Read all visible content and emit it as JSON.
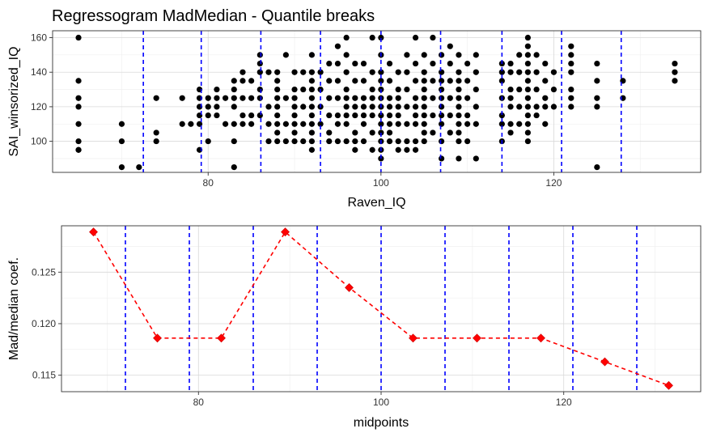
{
  "title": "Regressogram MadMedian - Quantile breaks",
  "colors": {
    "points": "#000000",
    "breaks": "#0000ff",
    "trend": "#ff0000"
  },
  "chart_data": [
    {
      "type": "scatter",
      "xlabel": "Raven_IQ",
      "ylabel": "SAI_winsorized_IQ",
      "xlim": [
        62,
        137
      ],
      "ylim": [
        82,
        164
      ],
      "xticks": [
        80,
        100,
        120
      ],
      "yticks": [
        100,
        120,
        140,
        160
      ],
      "breaks": [
        72.5,
        79.2,
        86.1,
        93.0,
        100.0,
        106.9,
        114.0,
        120.9,
        127.8
      ],
      "points": [
        [
          65,
          160
        ],
        [
          65,
          135
        ],
        [
          65,
          125
        ],
        [
          65,
          120
        ],
        [
          65,
          110
        ],
        [
          65,
          100
        ],
        [
          65,
          95
        ],
        [
          65,
          95
        ],
        [
          70,
          110
        ],
        [
          70,
          100
        ],
        [
          70,
          85
        ],
        [
          72,
          85
        ],
        [
          74,
          125
        ],
        [
          74,
          105
        ],
        [
          74,
          100
        ],
        [
          77,
          125
        ],
        [
          77,
          110
        ],
        [
          78,
          110
        ],
        [
          79,
          130
        ],
        [
          79,
          125
        ],
        [
          79,
          120
        ],
        [
          79,
          115
        ],
        [
          79,
          110
        ],
        [
          79,
          95
        ],
        [
          80,
          125
        ],
        [
          80,
          120
        ],
        [
          80,
          115
        ],
        [
          80,
          100
        ],
        [
          81,
          130
        ],
        [
          81,
          125
        ],
        [
          81,
          120
        ],
        [
          81,
          115
        ],
        [
          82,
          125
        ],
        [
          82,
          110
        ],
        [
          83,
          135
        ],
        [
          83,
          130
        ],
        [
          83,
          125
        ],
        [
          83,
          120
        ],
        [
          83,
          110
        ],
        [
          83,
          100
        ],
        [
          83,
          85
        ],
        [
          84,
          140
        ],
        [
          84,
          135
        ],
        [
          84,
          125
        ],
        [
          84,
          115
        ],
        [
          84,
          110
        ],
        [
          85,
          135
        ],
        [
          85,
          125
        ],
        [
          85,
          115
        ],
        [
          85,
          110
        ],
        [
          86,
          150
        ],
        [
          86,
          145
        ],
        [
          86,
          140
        ],
        [
          86,
          130
        ],
        [
          86,
          125
        ],
        [
          86,
          115
        ],
        [
          87,
          140
        ],
        [
          87,
          120
        ],
        [
          87,
          110
        ],
        [
          87,
          100
        ],
        [
          88,
          140
        ],
        [
          88,
          135
        ],
        [
          88,
          130
        ],
        [
          88,
          125
        ],
        [
          88,
          120
        ],
        [
          88,
          115
        ],
        [
          88,
          110
        ],
        [
          88,
          105
        ],
        [
          88,
          100
        ],
        [
          89,
          150
        ],
        [
          89,
          125
        ],
        [
          89,
          110
        ],
        [
          89,
          100
        ],
        [
          90,
          140
        ],
        [
          90,
          130
        ],
        [
          90,
          125
        ],
        [
          90,
          120
        ],
        [
          90,
          115
        ],
        [
          90,
          110
        ],
        [
          90,
          105
        ],
        [
          90,
          100
        ],
        [
          91,
          140
        ],
        [
          91,
          130
        ],
        [
          91,
          120
        ],
        [
          91,
          110
        ],
        [
          91,
          100
        ],
        [
          92,
          150
        ],
        [
          92,
          140
        ],
        [
          92,
          135
        ],
        [
          92,
          130
        ],
        [
          92,
          125
        ],
        [
          92,
          120
        ],
        [
          92,
          115
        ],
        [
          92,
          110
        ],
        [
          92,
          105
        ],
        [
          92,
          100
        ],
        [
          92,
          95
        ],
        [
          93,
          140
        ],
        [
          93,
          130
        ],
        [
          93,
          120
        ],
        [
          93,
          110
        ],
        [
          94,
          145
        ],
        [
          94,
          135
        ],
        [
          94,
          125
        ],
        [
          94,
          115
        ],
        [
          94,
          105
        ],
        [
          94,
          100
        ],
        [
          95,
          155
        ],
        [
          95,
          145
        ],
        [
          95,
          135
        ],
        [
          95,
          125
        ],
        [
          95,
          115
        ],
        [
          95,
          110
        ],
        [
          95,
          100
        ],
        [
          96,
          160
        ],
        [
          96,
          150
        ],
        [
          96,
          140
        ],
        [
          96,
          130
        ],
        [
          96,
          125
        ],
        [
          96,
          120
        ],
        [
          96,
          115
        ],
        [
          96,
          110
        ],
        [
          96,
          100
        ],
        [
          97,
          145
        ],
        [
          97,
          135
        ],
        [
          97,
          125
        ],
        [
          97,
          120
        ],
        [
          97,
          115
        ],
        [
          97,
          105
        ],
        [
          97,
          100
        ],
        [
          97,
          95
        ],
        [
          98,
          145
        ],
        [
          98,
          135
        ],
        [
          98,
          125
        ],
        [
          98,
          120
        ],
        [
          98,
          115
        ],
        [
          98,
          110
        ],
        [
          98,
          100
        ],
        [
          99,
          160
        ],
        [
          99,
          140
        ],
        [
          99,
          130
        ],
        [
          99,
          125
        ],
        [
          99,
          120
        ],
        [
          99,
          115
        ],
        [
          99,
          105
        ],
        [
          99,
          95
        ],
        [
          100,
          160
        ],
        [
          100,
          150
        ],
        [
          100,
          140
        ],
        [
          100,
          135
        ],
        [
          100,
          130
        ],
        [
          100,
          125
        ],
        [
          100,
          120
        ],
        [
          100,
          115
        ],
        [
          100,
          110
        ],
        [
          100,
          105
        ],
        [
          100,
          100
        ],
        [
          100,
          95
        ],
        [
          100,
          90
        ],
        [
          101,
          145
        ],
        [
          101,
          135
        ],
        [
          101,
          125
        ],
        [
          101,
          120
        ],
        [
          101,
          115
        ],
        [
          101,
          110
        ],
        [
          101,
          105
        ],
        [
          101,
          100
        ],
        [
          102,
          140
        ],
        [
          102,
          130
        ],
        [
          102,
          125
        ],
        [
          102,
          120
        ],
        [
          102,
          115
        ],
        [
          102,
          110
        ],
        [
          102,
          100
        ],
        [
          102,
          95
        ],
        [
          103,
          150
        ],
        [
          103,
          140
        ],
        [
          103,
          130
        ],
        [
          103,
          120
        ],
        [
          103,
          110
        ],
        [
          103,
          100
        ],
        [
          103,
          95
        ],
        [
          104,
          160
        ],
        [
          104,
          145
        ],
        [
          104,
          135
        ],
        [
          104,
          125
        ],
        [
          104,
          120
        ],
        [
          104,
          115
        ],
        [
          104,
          110
        ],
        [
          104,
          100
        ],
        [
          104,
          95
        ],
        [
          105,
          150
        ],
        [
          105,
          140
        ],
        [
          105,
          135
        ],
        [
          105,
          130
        ],
        [
          105,
          125
        ],
        [
          105,
          120
        ],
        [
          105,
          115
        ],
        [
          105,
          110
        ],
        [
          105,
          105
        ],
        [
          105,
          100
        ],
        [
          106,
          160
        ],
        [
          106,
          145
        ],
        [
          106,
          135
        ],
        [
          106,
          125
        ],
        [
          106,
          115
        ],
        [
          106,
          105
        ],
        [
          107,
          150
        ],
        [
          107,
          140
        ],
        [
          107,
          135
        ],
        [
          107,
          130
        ],
        [
          107,
          125
        ],
        [
          107,
          120
        ],
        [
          107,
          115
        ],
        [
          107,
          110
        ],
        [
          107,
          100
        ],
        [
          107,
          90
        ],
        [
          108,
          155
        ],
        [
          108,
          145
        ],
        [
          108,
          135
        ],
        [
          108,
          125
        ],
        [
          108,
          115
        ],
        [
          108,
          105
        ],
        [
          109,
          150
        ],
        [
          109,
          140
        ],
        [
          109,
          135
        ],
        [
          109,
          130
        ],
        [
          109,
          125
        ],
        [
          109,
          120
        ],
        [
          109,
          115
        ],
        [
          109,
          110
        ],
        [
          109,
          105
        ],
        [
          109,
          100
        ],
        [
          109,
          90
        ],
        [
          110,
          145
        ],
        [
          110,
          135
        ],
        [
          110,
          125
        ],
        [
          110,
          115
        ],
        [
          110,
          110
        ],
        [
          110,
          100
        ],
        [
          111,
          150
        ],
        [
          111,
          140
        ],
        [
          111,
          130
        ],
        [
          111,
          120
        ],
        [
          111,
          110
        ],
        [
          111,
          90
        ],
        [
          114,
          145
        ],
        [
          114,
          140
        ],
        [
          114,
          135
        ],
        [
          114,
          125
        ],
        [
          114,
          115
        ],
        [
          114,
          110
        ],
        [
          114,
          100
        ],
        [
          115,
          145
        ],
        [
          115,
          140
        ],
        [
          115,
          130
        ],
        [
          115,
          125
        ],
        [
          115,
          120
        ],
        [
          115,
          110
        ],
        [
          115,
          105
        ],
        [
          116,
          150
        ],
        [
          116,
          140
        ],
        [
          116,
          130
        ],
        [
          116,
          120
        ],
        [
          116,
          110
        ],
        [
          117,
          160
        ],
        [
          117,
          155
        ],
        [
          117,
          150
        ],
        [
          117,
          145
        ],
        [
          117,
          140
        ],
        [
          117,
          135
        ],
        [
          117,
          130
        ],
        [
          117,
          125
        ],
        [
          117,
          120
        ],
        [
          117,
          115
        ],
        [
          117,
          110
        ],
        [
          117,
          105
        ],
        [
          117,
          100
        ],
        [
          118,
          150
        ],
        [
          118,
          140
        ],
        [
          118,
          130
        ],
        [
          118,
          120
        ],
        [
          118,
          115
        ],
        [
          119,
          145
        ],
        [
          119,
          135
        ],
        [
          119,
          125
        ],
        [
          119,
          120
        ],
        [
          119,
          110
        ],
        [
          120,
          140
        ],
        [
          120,
          130
        ],
        [
          120,
          120
        ],
        [
          122,
          155
        ],
        [
          122,
          150
        ],
        [
          122,
          145
        ],
        [
          122,
          140
        ],
        [
          122,
          130
        ],
        [
          122,
          125
        ],
        [
          122,
          120
        ],
        [
          125,
          145
        ],
        [
          125,
          135
        ],
        [
          125,
          125
        ],
        [
          125,
          120
        ],
        [
          125,
          85
        ],
        [
          128,
          135
        ],
        [
          128,
          125
        ],
        [
          134,
          145
        ],
        [
          134,
          140
        ],
        [
          134,
          135
        ]
      ]
    },
    {
      "type": "line",
      "xlabel": "midpoints",
      "ylabel": "Mad/median coef.",
      "xlim": [
        65,
        135
      ],
      "ylim": [
        0.1134,
        0.1295
      ],
      "xticks": [
        80,
        100,
        120
      ],
      "yticks": [
        0.115,
        0.12,
        0.125
      ],
      "ytick_labels": [
        "0.115",
        "0.120",
        "0.125"
      ],
      "breaks": [
        72,
        79,
        86,
        93,
        100,
        107,
        114,
        121,
        128
      ],
      "x": [
        68.5,
        75.5,
        82.5,
        89.5,
        96.5,
        103.5,
        110.5,
        117.5,
        124.5,
        131.5
      ],
      "y": [
        0.1289,
        0.1186,
        0.1186,
        0.1289,
        0.1235,
        0.1186,
        0.1186,
        0.1186,
        0.1163,
        0.114
      ]
    }
  ]
}
